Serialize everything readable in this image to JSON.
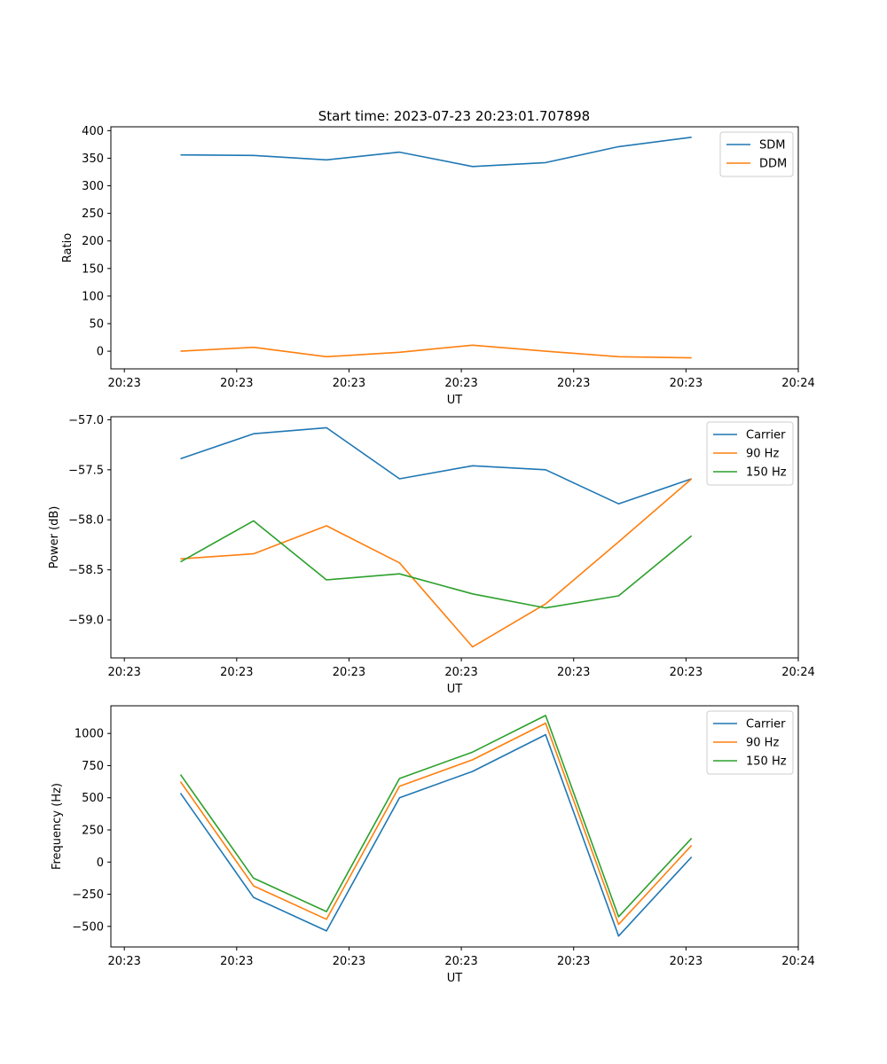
{
  "figure": {
    "title": "Start time: 2023-07-23 20:23:01.707898"
  },
  "chart_data": [
    {
      "type": "line",
      "title": "Start time: 2023-07-23 20:23:01.707898",
      "xlabel": "UT",
      "ylabel": "Ratio",
      "x_ticks": [
        "20:23",
        "20:23",
        "20:23",
        "20:23",
        "20:23",
        "20:23",
        "20:24"
      ],
      "x_tick_positions": [
        0,
        1,
        2,
        3,
        4,
        5,
        6
      ],
      "x": [
        0.5,
        1.15,
        1.8,
        2.45,
        3.1,
        3.75,
        4.4,
        5.05
      ],
      "xlim": [
        -0.12,
        6.0
      ],
      "ylim": [
        -32,
        407
      ],
      "y_ticks": [
        0,
        50,
        100,
        150,
        200,
        250,
        300,
        350,
        400
      ],
      "legend_loc": "upper right",
      "series": [
        {
          "name": "SDM",
          "color": "#1f77b4",
          "values": [
            356,
            355,
            347,
            361,
            335,
            342,
            371,
            388
          ]
        },
        {
          "name": "DDM",
          "color": "#ff7f0e",
          "values": [
            0,
            7,
            -10,
            -2,
            11,
            0,
            -10,
            -12
          ]
        }
      ]
    },
    {
      "type": "line",
      "title": "",
      "xlabel": "UT",
      "ylabel": "Power (dB)",
      "x_ticks": [
        "20:23",
        "20:23",
        "20:23",
        "20:23",
        "20:23",
        "20:23",
        "20:24"
      ],
      "x_tick_positions": [
        0,
        1,
        2,
        3,
        4,
        5,
        6
      ],
      "x": [
        0.5,
        1.15,
        1.8,
        2.45,
        3.1,
        3.75,
        4.4,
        5.05
      ],
      "xlim": [
        -0.12,
        6.0
      ],
      "ylim": [
        -59.38,
        -56.97
      ],
      "y_ticks": [
        -59.0,
        -58.5,
        -58.0,
        -57.5,
        -57.0
      ],
      "y_tick_labels": [
        "−59.0",
        "−58.5",
        "−58.0",
        "−57.5",
        "−57.0"
      ],
      "legend_loc": "upper right",
      "series": [
        {
          "name": "Carrier",
          "color": "#1f77b4",
          "values": [
            -57.39,
            -57.14,
            -57.08,
            -57.59,
            -57.46,
            -57.5,
            -57.84,
            -57.59
          ]
        },
        {
          "name": "90 Hz",
          "color": "#ff7f0e",
          "values": [
            -58.39,
            -58.34,
            -58.06,
            -58.43,
            -59.27,
            -58.84,
            -58.22,
            -57.59
          ]
        },
        {
          "name": "150 Hz",
          "color": "#2ca02c",
          "values": [
            -58.42,
            -58.01,
            -58.6,
            -58.54,
            -58.74,
            -58.88,
            -58.76,
            -58.16
          ]
        }
      ]
    },
    {
      "type": "line",
      "title": "",
      "xlabel": "UT",
      "ylabel": "Frequency (Hz)",
      "x_ticks": [
        "20:23",
        "20:23",
        "20:23",
        "20:23",
        "20:23",
        "20:23",
        "20:24"
      ],
      "x_tick_positions": [
        0,
        1,
        2,
        3,
        4,
        5,
        6
      ],
      "x": [
        0.5,
        1.15,
        1.8,
        2.45,
        3.1,
        3.75,
        4.4,
        5.05
      ],
      "xlim": [
        -0.12,
        6.0
      ],
      "ylim": [
        -660,
        1215
      ],
      "y_ticks": [
        -500,
        -250,
        0,
        250,
        500,
        750,
        1000
      ],
      "y_tick_labels": [
        "−500",
        "−250",
        "0",
        "250",
        "500",
        "750",
        "1000"
      ],
      "legend_loc": "upper right",
      "series": [
        {
          "name": "Carrier",
          "color": "#1f77b4",
          "values": [
            535,
            -275,
            -535,
            500,
            705,
            990,
            -575,
            40
          ]
        },
        {
          "name": "90 Hz",
          "color": "#ff7f0e",
          "values": [
            625,
            -185,
            -445,
            590,
            795,
            1080,
            -485,
            130
          ]
        },
        {
          "name": "150 Hz",
          "color": "#2ca02c",
          "values": [
            680,
            -125,
            -385,
            650,
            855,
            1140,
            -425,
            185
          ]
        }
      ]
    }
  ]
}
